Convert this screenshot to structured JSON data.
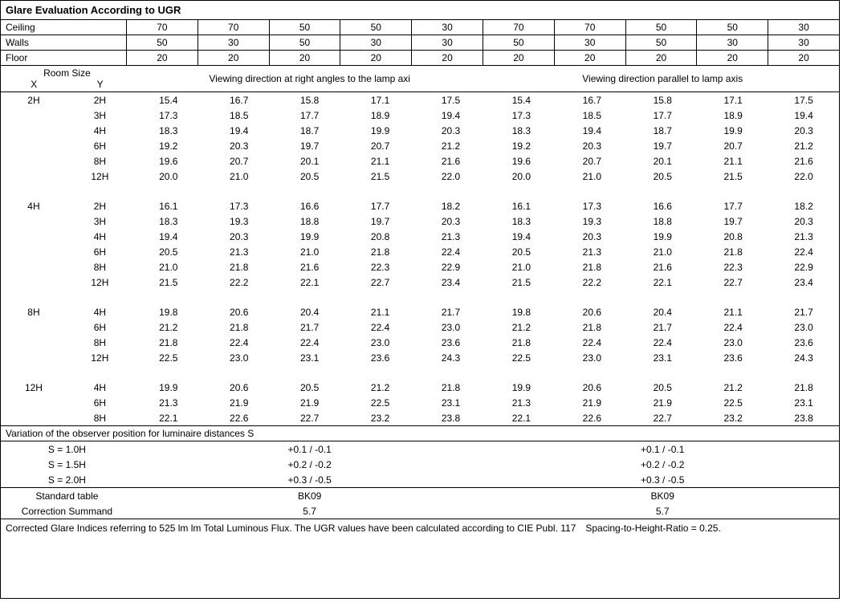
{
  "title": "Glare Evaluation According to UGR",
  "header_rows": [
    {
      "label": "Ceiling",
      "vals": [
        "70",
        "70",
        "50",
        "50",
        "30",
        "70",
        "70",
        "50",
        "50",
        "30"
      ]
    },
    {
      "label": "Walls",
      "vals": [
        "50",
        "30",
        "50",
        "30",
        "30",
        "50",
        "30",
        "50",
        "30",
        "30"
      ]
    },
    {
      "label": "Floor",
      "vals": [
        "20",
        "20",
        "20",
        "20",
        "20",
        "20",
        "20",
        "20",
        "20",
        "20"
      ]
    }
  ],
  "room_size_label": "Room Size",
  "x_label": "X",
  "y_label": "Y",
  "dir_left": "Viewing direction at right angles to the lamp axi",
  "dir_right": "Viewing direction parallel to lamp axis",
  "groups": [
    {
      "x": "2H",
      "rows": [
        {
          "y": "2H",
          "l": [
            "15.4",
            "16.7",
            "15.8",
            "17.1",
            "17.5"
          ],
          "r": [
            "15.4",
            "16.7",
            "15.8",
            "17.1",
            "17.5"
          ]
        },
        {
          "y": "3H",
          "l": [
            "17.3",
            "18.5",
            "17.7",
            "18.9",
            "19.4"
          ],
          "r": [
            "17.3",
            "18.5",
            "17.7",
            "18.9",
            "19.4"
          ]
        },
        {
          "y": "4H",
          "l": [
            "18.3",
            "19.4",
            "18.7",
            "19.9",
            "20.3"
          ],
          "r": [
            "18.3",
            "19.4",
            "18.7",
            "19.9",
            "20.3"
          ]
        },
        {
          "y": "6H",
          "l": [
            "19.2",
            "20.3",
            "19.7",
            "20.7",
            "21.2"
          ],
          "r": [
            "19.2",
            "20.3",
            "19.7",
            "20.7",
            "21.2"
          ]
        },
        {
          "y": "8H",
          "l": [
            "19.6",
            "20.7",
            "20.1",
            "21.1",
            "21.6"
          ],
          "r": [
            "19.6",
            "20.7",
            "20.1",
            "21.1",
            "21.6"
          ]
        },
        {
          "y": "12H",
          "l": [
            "20.0",
            "21.0",
            "20.5",
            "21.5",
            "22.0"
          ],
          "r": [
            "20.0",
            "21.0",
            "20.5",
            "21.5",
            "22.0"
          ]
        }
      ]
    },
    {
      "x": "4H",
      "rows": [
        {
          "y": "2H",
          "l": [
            "16.1",
            "17.3",
            "16.6",
            "17.7",
            "18.2"
          ],
          "r": [
            "16.1",
            "17.3",
            "16.6",
            "17.7",
            "18.2"
          ]
        },
        {
          "y": "3H",
          "l": [
            "18.3",
            "19.3",
            "18.8",
            "19.7",
            "20.3"
          ],
          "r": [
            "18.3",
            "19.3",
            "18.8",
            "19.7",
            "20.3"
          ]
        },
        {
          "y": "4H",
          "l": [
            "19.4",
            "20.3",
            "19.9",
            "20.8",
            "21.3"
          ],
          "r": [
            "19.4",
            "20.3",
            "19.9",
            "20.8",
            "21.3"
          ]
        },
        {
          "y": "6H",
          "l": [
            "20.5",
            "21.3",
            "21.0",
            "21.8",
            "22.4"
          ],
          "r": [
            "20.5",
            "21.3",
            "21.0",
            "21.8",
            "22.4"
          ]
        },
        {
          "y": "8H",
          "l": [
            "21.0",
            "21.8",
            "21.6",
            "22.3",
            "22.9"
          ],
          "r": [
            "21.0",
            "21.8",
            "21.6",
            "22.3",
            "22.9"
          ]
        },
        {
          "y": "12H",
          "l": [
            "21.5",
            "22.2",
            "22.1",
            "22.7",
            "23.4"
          ],
          "r": [
            "21.5",
            "22.2",
            "22.1",
            "22.7",
            "23.4"
          ]
        }
      ]
    },
    {
      "x": "8H",
      "rows": [
        {
          "y": "4H",
          "l": [
            "19.8",
            "20.6",
            "20.4",
            "21.1",
            "21.7"
          ],
          "r": [
            "19.8",
            "20.6",
            "20.4",
            "21.1",
            "21.7"
          ]
        },
        {
          "y": "6H",
          "l": [
            "21.2",
            "21.8",
            "21.7",
            "22.4",
            "23.0"
          ],
          "r": [
            "21.2",
            "21.8",
            "21.7",
            "22.4",
            "23.0"
          ]
        },
        {
          "y": "8H",
          "l": [
            "21.8",
            "22.4",
            "22.4",
            "23.0",
            "23.6"
          ],
          "r": [
            "21.8",
            "22.4",
            "22.4",
            "23.0",
            "23.6"
          ]
        },
        {
          "y": "12H",
          "l": [
            "22.5",
            "23.0",
            "23.1",
            "23.6",
            "24.3"
          ],
          "r": [
            "22.5",
            "23.0",
            "23.1",
            "23.6",
            "24.3"
          ]
        }
      ]
    },
    {
      "x": "12H",
      "rows": [
        {
          "y": "4H",
          "l": [
            "19.9",
            "20.6",
            "20.5",
            "21.2",
            "21.8"
          ],
          "r": [
            "19.9",
            "20.6",
            "20.5",
            "21.2",
            "21.8"
          ]
        },
        {
          "y": "6H",
          "l": [
            "21.3",
            "21.9",
            "21.9",
            "22.5",
            "23.1"
          ],
          "r": [
            "21.3",
            "21.9",
            "21.9",
            "22.5",
            "23.1"
          ]
        },
        {
          "y": "8H",
          "l": [
            "22.1",
            "22.6",
            "22.7",
            "23.2",
            "23.8"
          ],
          "r": [
            "22.1",
            "22.6",
            "22.7",
            "23.2",
            "23.8"
          ]
        }
      ]
    }
  ],
  "variation_title": "Variation of the observer position for luminaire distances S",
  "variation_rows": [
    {
      "label": "S = 1.0H",
      "left": "+0.1 / -0.1",
      "right": "+0.1 / -0.1"
    },
    {
      "label": "S = 1.5H",
      "left": "+0.2 / -0.2",
      "right": "+0.2 / -0.2"
    },
    {
      "label": "S = 2.0H",
      "left": "+0.3 / -0.5",
      "right": "+0.3 / -0.5"
    }
  ],
  "std_table_label": "Standard table",
  "std_table_left": "BK09",
  "std_table_right": "BK09",
  "corr_label": "Correction Summand",
  "corr_left": "5.7",
  "corr_right": "5.7",
  "footnote": "Corrected Glare Indices referring to 525 lm lm Total Luminous Flux. The UGR values have been calculated according to CIE Publ. 117 Spacing-to-Height-Ratio = 0.25."
}
